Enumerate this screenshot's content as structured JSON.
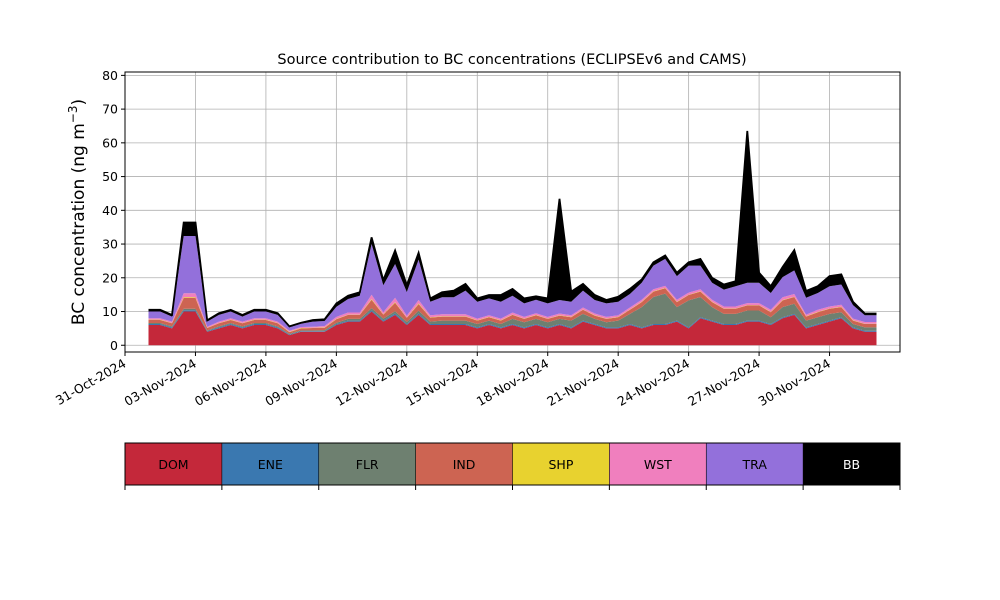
{
  "chart_data": {
    "type": "area",
    "stacked": true,
    "title": "Source contribution to BC concentrations (ECLIPSEv6 and CAMS)",
    "ylabel": "BC concentration (ng m",
    "ylabel_sup": "−3",
    "ylabel_close": ")",
    "xlabel": "",
    "grid": true,
    "ylim": [
      -2,
      81
    ],
    "xlim": [
      "2024-10-31",
      "2024-12-03"
    ],
    "yticks": [
      0,
      10,
      20,
      30,
      40,
      50,
      60,
      70,
      80
    ],
    "xticks": [
      {
        "date": "2024-10-31",
        "label": "31-Oct-2024"
      },
      {
        "date": "2024-11-03",
        "label": "03-Nov-2024"
      },
      {
        "date": "2024-11-06",
        "label": "06-Nov-2024"
      },
      {
        "date": "2024-11-09",
        "label": "09-Nov-2024"
      },
      {
        "date": "2024-11-12",
        "label": "12-Nov-2024"
      },
      {
        "date": "2024-11-15",
        "label": "15-Nov-2024"
      },
      {
        "date": "2024-11-18",
        "label": "18-Nov-2024"
      },
      {
        "date": "2024-11-21",
        "label": "21-Nov-2024"
      },
      {
        "date": "2024-11-24",
        "label": "24-Nov-2024"
      },
      {
        "date": "2024-11-27",
        "label": "27-Nov-2024"
      },
      {
        "date": "2024-11-30",
        "label": "30-Nov-2024"
      }
    ],
    "x": [
      "2024-11-01",
      "2024-11-01 12:00",
      "2024-11-02",
      "2024-11-02 12:00",
      "2024-11-03",
      "2024-11-03 12:00",
      "2024-11-04",
      "2024-11-04 12:00",
      "2024-11-05",
      "2024-11-05 12:00",
      "2024-11-06",
      "2024-11-06 12:00",
      "2024-11-07",
      "2024-11-07 12:00",
      "2024-11-08",
      "2024-11-08 12:00",
      "2024-11-09",
      "2024-11-09 12:00",
      "2024-11-10",
      "2024-11-10 12:00",
      "2024-11-11",
      "2024-11-11 12:00",
      "2024-11-12",
      "2024-11-12 12:00",
      "2024-11-13",
      "2024-11-13 12:00",
      "2024-11-14",
      "2024-11-14 12:00",
      "2024-11-15",
      "2024-11-15 12:00",
      "2024-11-16",
      "2024-11-16 12:00",
      "2024-11-17",
      "2024-11-17 12:00",
      "2024-11-18",
      "2024-11-18 12:00",
      "2024-11-19",
      "2024-11-19 12:00",
      "2024-11-20",
      "2024-11-20 12:00",
      "2024-11-21",
      "2024-11-21 12:00",
      "2024-11-22",
      "2024-11-22 12:00",
      "2024-11-23",
      "2024-11-23 12:00",
      "2024-11-24",
      "2024-11-24 12:00",
      "2024-11-25",
      "2024-11-25 12:00",
      "2024-11-26",
      "2024-11-26 12:00",
      "2024-11-27",
      "2024-11-27 12:00",
      "2024-11-28",
      "2024-11-28 12:00",
      "2024-11-29",
      "2024-11-29 12:00",
      "2024-11-30",
      "2024-11-30 12:00",
      "2024-12-01",
      "2024-12-01 12:00",
      "2024-12-02"
    ],
    "series": [
      {
        "name": "DOM",
        "color": "#c4283a",
        "values": [
          6,
          6,
          5,
          10,
          10,
          4,
          5,
          6,
          5,
          6,
          6,
          5,
          3,
          4,
          4,
          4,
          6,
          7,
          7,
          10,
          7,
          9,
          6,
          9,
          6,
          6,
          6,
          6,
          5,
          6,
          5,
          6,
          5,
          6,
          5,
          6,
          5,
          7,
          6,
          5,
          5,
          6,
          5,
          6,
          6,
          7,
          5,
          8,
          7,
          6,
          6,
          7,
          7,
          6,
          8,
          9,
          5,
          6,
          7,
          8,
          5,
          4,
          4
        ]
      },
      {
        "name": "ENE",
        "color": "#3a78b0",
        "values": [
          0.3,
          0.3,
          0.3,
          0.4,
          0.4,
          0.2,
          0.3,
          0.3,
          0.3,
          0.3,
          0.3,
          0.3,
          0.2,
          0.2,
          0.2,
          0.2,
          0.3,
          0.3,
          0.3,
          0.4,
          0.3,
          0.4,
          0.3,
          0.4,
          0.3,
          0.3,
          0.3,
          0.3,
          0.3,
          0.3,
          0.3,
          0.3,
          0.3,
          0.3,
          0.3,
          0.3,
          0.3,
          0.3,
          0.3,
          0.3,
          0.3,
          0.3,
          0.3,
          0.3,
          0.3,
          0.3,
          0.3,
          0.3,
          0.3,
          0.3,
          0.3,
          0.3,
          0.3,
          0.3,
          0.3,
          0.3,
          0.3,
          0.3,
          0.3,
          0.3,
          0.3,
          0.3,
          0.3
        ]
      },
      {
        "name": "FLR",
        "color": "#6e8070",
        "values": [
          0.3,
          0.3,
          0.3,
          0.4,
          0.4,
          0.2,
          0.3,
          0.3,
          0.3,
          0.3,
          0.3,
          0.3,
          0.2,
          0.2,
          0.2,
          0.3,
          0.4,
          0.5,
          0.5,
          0.6,
          0.6,
          0.7,
          0.6,
          0.8,
          0.7,
          1,
          1,
          1,
          1,
          1,
          1,
          1.5,
          1.5,
          1.5,
          1.5,
          1.5,
          2,
          2,
          1.5,
          1.5,
          2,
          3,
          6,
          8,
          9,
          4,
          8,
          6,
          4,
          3,
          3,
          3,
          3,
          2,
          3,
          3,
          2,
          2,
          2,
          1.5,
          1,
          1,
          1
        ]
      },
      {
        "name": "IND",
        "color": "#cd6452",
        "values": [
          0.9,
          0.9,
          0.9,
          3.2,
          3.2,
          0.7,
          0.9,
          0.9,
          0.9,
          0.9,
          0.9,
          0.9,
          0.5,
          0.6,
          0.7,
          0.7,
          1,
          1.2,
          1.2,
          2.5,
          1.2,
          2.5,
          1.2,
          2,
          1.2,
          1.2,
          1.2,
          1.2,
          1,
          1,
          1,
          1.2,
          1,
          1.1,
          1,
          1,
          1,
          1.2,
          1,
          1,
          1,
          1.2,
          1.5,
          1.6,
          1.6,
          1.5,
          1.6,
          1.6,
          1.5,
          1.5,
          1.5,
          1.5,
          1.5,
          1.5,
          2,
          2,
          1.2,
          1.5,
          1.5,
          1.5,
          1,
          1,
          1
        ]
      },
      {
        "name": "SHP",
        "color": "#e8d22f",
        "values": [
          0.1,
          0.1,
          0.1,
          0.2,
          0.2,
          0.1,
          0.1,
          0.1,
          0.1,
          0.1,
          0.1,
          0.1,
          0.1,
          0.1,
          0.1,
          0.1,
          0.1,
          0.1,
          0.1,
          0.2,
          0.1,
          0.2,
          0.1,
          0.2,
          0.1,
          0.1,
          0.1,
          0.1,
          0.1,
          0.1,
          0.1,
          0.1,
          0.1,
          0.1,
          0.1,
          0.1,
          0.1,
          0.1,
          0.1,
          0.1,
          0.1,
          0.1,
          0.1,
          0.1,
          0.1,
          0.1,
          0.1,
          0.1,
          0.1,
          0.1,
          0.1,
          0.1,
          0.1,
          0.1,
          0.1,
          0.1,
          0.1,
          0.1,
          0.1,
          0.1,
          0.1,
          0.1,
          0.1
        ]
      },
      {
        "name": "WST",
        "color": "#f07fbe",
        "values": [
          0.4,
          0.4,
          0.4,
          1.2,
          1.2,
          0.3,
          0.4,
          0.4,
          0.4,
          0.4,
          0.4,
          0.4,
          0.3,
          0.3,
          0.3,
          0.4,
          0.6,
          0.6,
          0.6,
          1.3,
          0.6,
          1.3,
          0.6,
          1,
          0.6,
          0.6,
          0.6,
          0.6,
          0.5,
          0.5,
          0.5,
          0.6,
          0.5,
          0.5,
          0.5,
          0.5,
          0.5,
          0.6,
          0.5,
          0.5,
          0.5,
          0.6,
          0.6,
          0.6,
          0.6,
          0.6,
          0.6,
          0.6,
          0.6,
          0.6,
          0.6,
          0.6,
          0.6,
          0.6,
          0.8,
          0.8,
          0.5,
          0.6,
          0.6,
          0.6,
          0.5,
          0.5,
          0.5
        ]
      },
      {
        "name": "TRA",
        "color": "#9370db",
        "values": [
          2,
          2,
          1.5,
          17,
          17,
          1.5,
          2,
          2,
          1.5,
          2,
          2,
          2,
          1,
          1,
          1.5,
          1.5,
          3,
          4,
          5,
          15,
          8,
          10,
          7,
          12,
          4,
          5,
          5,
          7,
          5,
          5,
          5,
          5,
          4,
          4,
          4,
          4,
          4,
          5,
          4,
          4,
          4,
          4,
          5,
          7,
          8,
          7,
          8,
          7,
          5,
          5,
          6,
          6,
          6,
          5,
          6,
          7,
          5,
          5,
          6,
          6,
          4,
          2,
          2
        ]
      },
      {
        "name": "BB",
        "color": "#000000",
        "values": [
          0.5,
          0.5,
          0.5,
          4,
          4,
          0.4,
          0.5,
          0.5,
          0.5,
          0.5,
          0.5,
          0.5,
          0.3,
          0.3,
          0.5,
          0.5,
          1,
          1,
          1,
          2,
          1.5,
          4,
          2,
          2,
          1,
          1.5,
          2,
          2,
          1,
          1,
          2,
          2,
          1.5,
          1,
          1.5,
          30,
          3,
          2,
          1.5,
          1,
          1.5,
          1.5,
          1,
          1,
          1,
          1,
          1,
          2,
          1.5,
          1.5,
          1.5,
          45,
          3,
          2,
          3,
          6,
          2,
          2,
          3,
          3,
          1,
          0.5,
          0.5
        ]
      }
    ],
    "legend": {
      "placement": "bottom"
    }
  }
}
